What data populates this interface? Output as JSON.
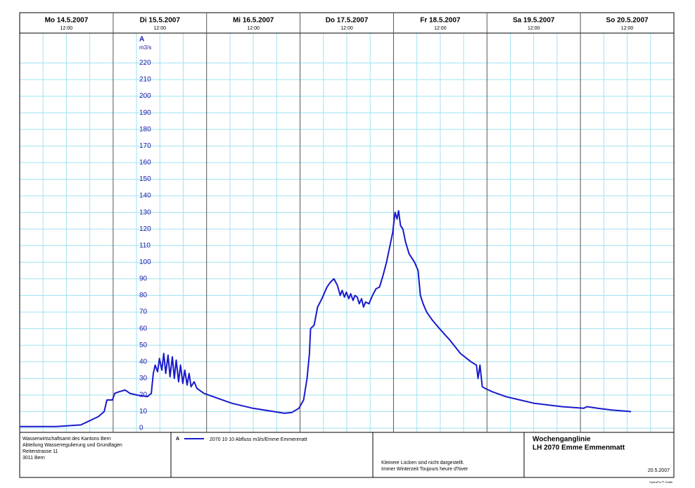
{
  "chart_data": {
    "type": "line",
    "days": [
      {
        "label": "Mo  14.5.2007",
        "noon": "12:00"
      },
      {
        "label": "Di  15.5.2007",
        "noon": "12:00"
      },
      {
        "label": "Mi  16.5.2007",
        "noon": "12:00"
      },
      {
        "label": "Do  17.5.2007",
        "noon": "12:00"
      },
      {
        "label": "Fr  18.5.2007",
        "noon": "12:00"
      },
      {
        "label": "Sa  19.5.2007",
        "noon": "12:00"
      },
      {
        "label": "So  20.5.2007",
        "noon": "12:00"
      }
    ],
    "axis_name": "A",
    "axis_unit": "m3/s",
    "xlim": [
      0,
      168
    ],
    "ylim": [
      -2.5,
      238
    ],
    "yticks": [
      0,
      10,
      20,
      30,
      40,
      50,
      60,
      70,
      80,
      90,
      100,
      110,
      120,
      130,
      140,
      150,
      160,
      170,
      180,
      190,
      200,
      210,
      220
    ],
    "grid": true,
    "series": [
      {
        "name": "2070 10 10  Abfluss m3/s/Emme Emmenmatt",
        "legend_key": "A",
        "color": "#1a1acc",
        "x": [
          0,
          9.4,
          15.7,
          17.5,
          20.2,
          21.7,
          22.4,
          23.8,
          24.4,
          25.6,
          27.1,
          28.3,
          30.1,
          32.8,
          33.8,
          34.3,
          34.8,
          35.4,
          35.9,
          36.5,
          37.0,
          37.5,
          38.1,
          38.6,
          39.2,
          39.7,
          40.2,
          40.8,
          41.3,
          41.9,
          42.4,
          43.0,
          43.5,
          44.0,
          44.8,
          45.5,
          47.3,
          50.9,
          54.5,
          59.9,
          65.3,
          68.0,
          69.9,
          71.7,
          72.9,
          73.8,
          74.4,
          74.7,
          75.6,
          76.5,
          77.6,
          78.9,
          79.8,
          80.7,
          81.6,
          82.3,
          82.8,
          83.4,
          83.9,
          84.5,
          85.0,
          85.6,
          86.1,
          86.7,
          87.2,
          87.8,
          88.3,
          88.8,
          89.7,
          90.6,
          91.5,
          92.4,
          93.3,
          94.2,
          95.1,
          95.8,
          96.4,
          96.9,
          97.3,
          97.8,
          98.4,
          99.1,
          100.0,
          101.4,
          102.3,
          102.9,
          103.6,
          104.5,
          106.0,
          107.8,
          110.5,
          113.2,
          115.9,
          117.3,
          117.7,
          118.2,
          118.8,
          119.5,
          121.3,
          124.9,
          128.5,
          132.1,
          135.7,
          139.3,
          144.8,
          145.7,
          148.4,
          152.0,
          157.0
        ],
        "values": [
          1,
          1,
          2,
          4,
          7,
          10,
          17,
          17,
          21,
          22,
          23,
          21,
          20,
          19,
          21,
          33,
          38,
          34,
          42,
          35,
          45,
          33,
          44,
          31,
          43,
          30,
          41,
          28,
          38,
          27,
          35,
          26,
          33,
          25,
          28,
          24,
          21,
          18,
          15,
          12,
          10,
          9,
          9.5,
          12,
          17,
          30,
          45,
          60,
          62,
          73,
          78,
          85,
          88,
          90,
          86,
          80,
          83,
          79,
          82,
          78,
          81,
          77,
          80,
          79,
          75,
          78,
          73,
          76,
          75,
          80,
          84,
          85,
          92,
          100,
          110,
          118,
          130,
          126,
          131,
          122,
          120,
          112,
          105,
          100,
          95,
          80,
          75,
          70,
          65,
          60,
          53,
          45,
          40,
          38,
          30,
          38,
          25,
          24,
          22,
          19,
          17,
          15,
          14,
          13,
          12,
          13,
          12,
          11,
          10
        ]
      }
    ]
  },
  "footer": {
    "org": [
      "Wasserwirtschaftsamt des Kantons Bern",
      "Abteilung Wasserregulierung und Grundlagen",
      "Reiterstrasse 11",
      "3011 Bern"
    ],
    "notes": [
      "Kleinere Lücken sind nicht dargestellt.",
      "Immer Winterzeit Toujours heure d'hiver"
    ],
    "title": [
      "Wochenganglinie",
      "LH 2070 Emme Emmenmatt"
    ],
    "date": "20.5.2007",
    "credit": "HydroPro™ Grafik"
  }
}
